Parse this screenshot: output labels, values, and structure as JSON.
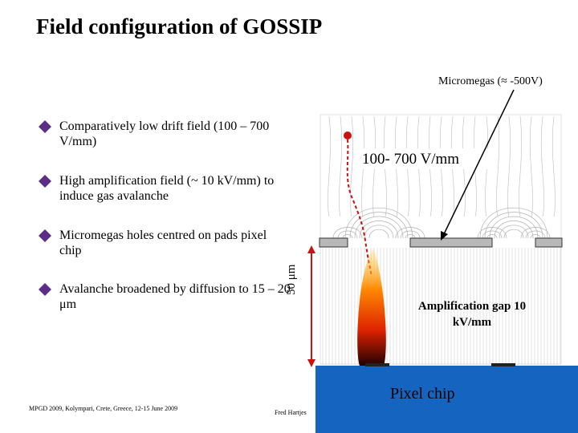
{
  "title": "Field configuration of GOSSIP",
  "bullets": [
    {
      "text": "Comparatively low drift field (100 – 700 V/mm)"
    },
    {
      "text": "High amplification field (~ 10 kV/mm) to induce gas avalanche"
    },
    {
      "text": "Micromegas holes centred on pads pixel chip"
    },
    {
      "text": "Avalanche broadened by diffusion to 15 – 20 μm"
    }
  ],
  "diagram": {
    "micromegas_label": "Micromegas (≈ -500V)",
    "drift_field_label": "100- 700 V/mm",
    "gap_size_label": "50 μm",
    "amplification_gap_label": "Amplification gap 10 kV/mm",
    "pixel_chip_label": "Pixel chip"
  },
  "footer": {
    "conference": "MPGD 2009, Kolympari, Crete, Greece, 12-15 June 2009",
    "author": "Fred Hartjes"
  },
  "colors": {
    "bullet": "#5b2d86",
    "chip": "#1565c0",
    "mesh": "#b8b8b8",
    "track": "#cc1111",
    "avalanche": "#ff6600"
  }
}
